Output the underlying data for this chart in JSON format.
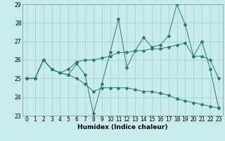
{
  "xlabel": "Humidex (Indice chaleur)",
  "x": [
    0,
    1,
    2,
    3,
    4,
    5,
    6,
    7,
    8,
    9,
    10,
    11,
    12,
    13,
    14,
    15,
    16,
    17,
    18,
    19,
    20,
    21,
    22,
    23
  ],
  "series1": [
    25.0,
    25.0,
    26.0,
    25.5,
    25.3,
    25.2,
    25.8,
    25.2,
    23.1,
    24.7,
    26.4,
    28.2,
    25.6,
    26.5,
    27.2,
    26.7,
    26.8,
    27.3,
    29.0,
    27.9,
    26.2,
    27.0,
    25.5,
    23.4
  ],
  "series2": [
    25.0,
    25.0,
    26.0,
    25.5,
    25.3,
    25.5,
    25.9,
    26.0,
    26.0,
    26.1,
    26.2,
    26.4,
    26.4,
    26.5,
    26.5,
    26.6,
    26.6,
    26.7,
    26.8,
    26.9,
    26.2,
    26.2,
    26.0,
    25.0
  ],
  "series3": [
    25.0,
    25.0,
    26.0,
    25.5,
    25.3,
    25.2,
    25.0,
    24.7,
    24.3,
    24.5,
    24.5,
    24.5,
    24.5,
    24.4,
    24.3,
    24.3,
    24.2,
    24.1,
    23.9,
    23.8,
    23.7,
    23.6,
    23.5,
    23.4
  ],
  "ylim": [
    23,
    29
  ],
  "xlim": [
    -0.5,
    23.5
  ],
  "yticks": [
    23,
    24,
    25,
    26,
    27,
    28,
    29
  ],
  "xticks": [
    0,
    1,
    2,
    3,
    4,
    5,
    6,
    7,
    8,
    9,
    10,
    11,
    12,
    13,
    14,
    15,
    16,
    17,
    18,
    19,
    20,
    21,
    22,
    23
  ],
  "line_color": "#2a7a6f",
  "bg_color": "#c8ecec",
  "grid_color": "#9ecece",
  "label_fontsize": 6.5,
  "tick_fontsize": 5.5
}
